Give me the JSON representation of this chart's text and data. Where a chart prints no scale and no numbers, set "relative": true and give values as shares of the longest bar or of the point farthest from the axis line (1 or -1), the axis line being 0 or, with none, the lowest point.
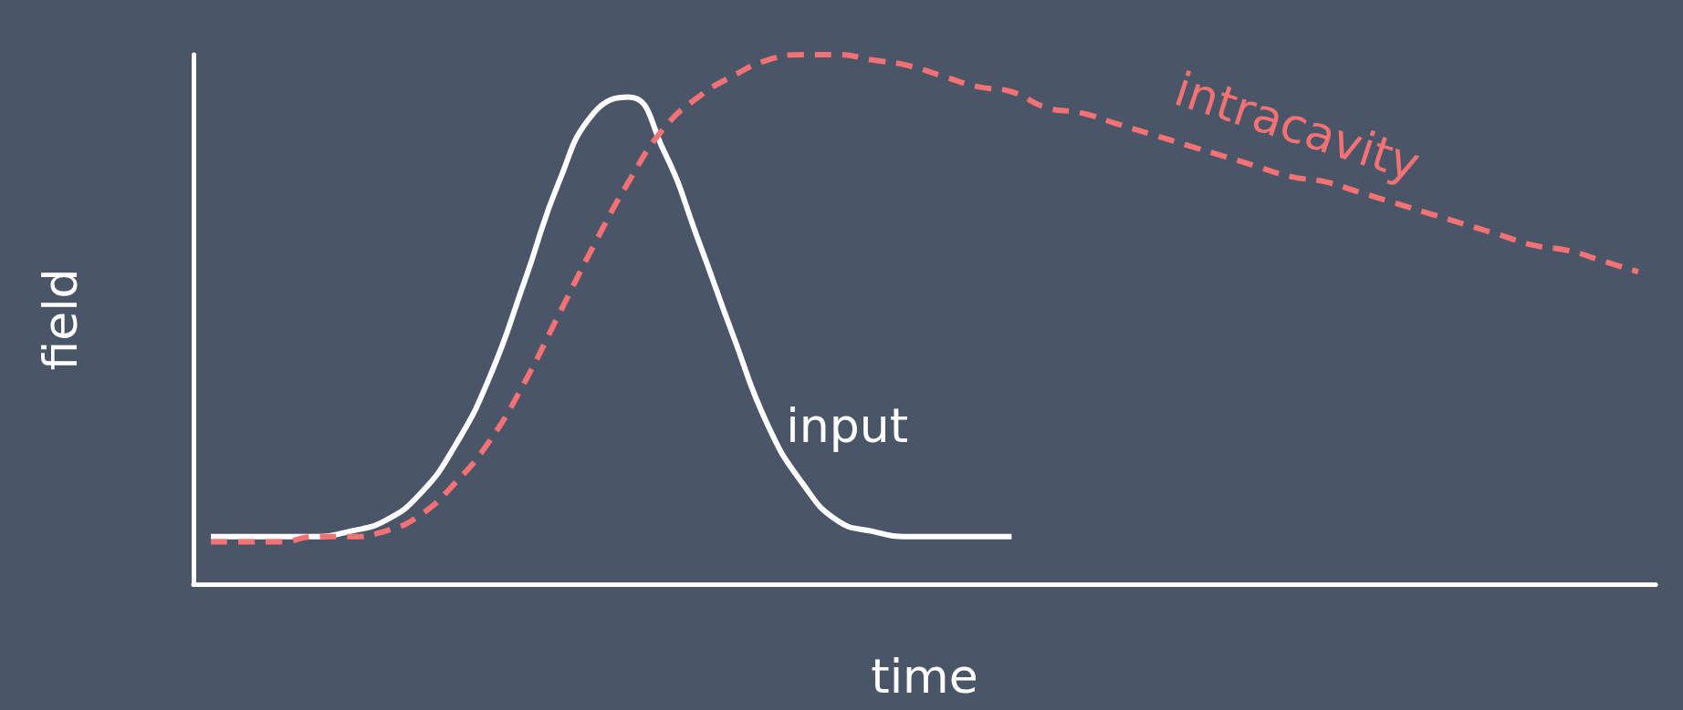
{
  "chart_data": {
    "type": "line",
    "xlabel": "time",
    "ylabel": "field",
    "relative": true,
    "grid": false,
    "legend": false,
    "categories": [
      null,
      null,
      null,
      null,
      null,
      null,
      null,
      null,
      null,
      null,
      null,
      null,
      null,
      null,
      null,
      null,
      null,
      null,
      null,
      null,
      null,
      null,
      null,
      null,
      null,
      null,
      null,
      null,
      null,
      null,
      null,
      null,
      null,
      null,
      null,
      null,
      null,
      null,
      null,
      null,
      null,
      null
    ],
    "series": [
      {
        "name": "input",
        "color": "#ffffff",
        "line_style": "solid",
        "values": [
          0.09,
          0.09,
          0.09,
          0.09,
          0.1,
          0.12,
          0.17,
          0.26,
          0.39,
          0.57,
          0.76,
          0.89,
          0.92,
          0.82,
          0.65,
          0.47,
          0.3,
          0.19,
          0.12,
          0.1,
          0.09,
          0.09,
          0.09,
          0.09,
          null,
          null,
          null,
          null,
          null,
          null,
          null,
          null,
          null,
          null,
          null,
          null,
          null,
          null,
          null,
          null,
          null,
          null
        ]
      },
      {
        "name": "intracavity",
        "color": "#f47174",
        "line_style": "dashed",
        "values": [
          0.08,
          0.08,
          0.08,
          0.09,
          0.09,
          0.1,
          0.13,
          0.19,
          0.27,
          0.38,
          0.51,
          0.64,
          0.76,
          0.86,
          0.92,
          0.96,
          0.99,
          1.0,
          1.0,
          0.99,
          0.98,
          0.96,
          0.94,
          0.93,
          0.9,
          0.89,
          0.87,
          0.85,
          0.83,
          0.81,
          0.79,
          0.77,
          0.76,
          0.74,
          0.72,
          0.7,
          0.68,
          0.66,
          0.64,
          0.63,
          0.61,
          0.59
        ]
      }
    ]
  }
}
